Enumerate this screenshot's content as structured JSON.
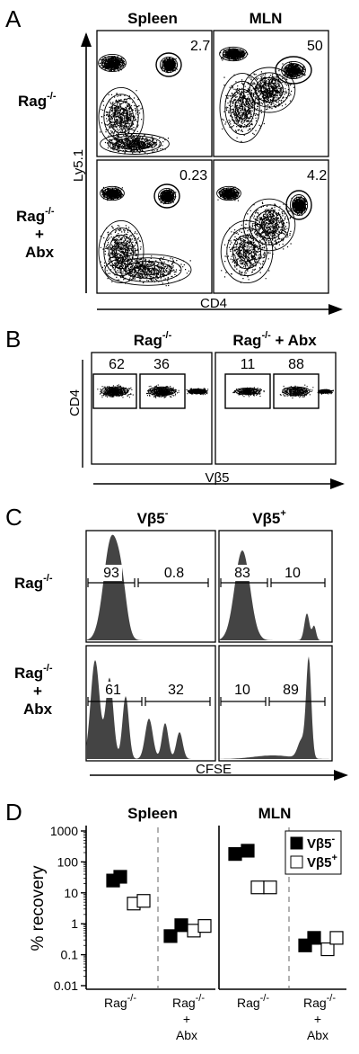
{
  "panelA": {
    "letter": "A",
    "col_headers": [
      "Spleen",
      "MLN"
    ],
    "rows": [
      {
        "label_main": "Rag",
        "label_sup": "-/-",
        "label_extra": ""
      },
      {
        "label_main": "Rag",
        "label_sup": "-/-",
        "label_extra": "Abx",
        "label_plus": "+"
      }
    ],
    "percents": [
      "2.7",
      "50",
      "0.23",
      "4.2"
    ],
    "y_axis": "Ly5.1",
    "x_axis": "CD4"
  },
  "panelB": {
    "letter": "B",
    "col_headers": [
      {
        "main": "Rag",
        "sup": "-/-",
        "rest": ""
      },
      {
        "main": "Rag",
        "sup": "-/-",
        "rest": " + Abx"
      }
    ],
    "percents": [
      "62",
      "36",
      "11",
      "88"
    ],
    "y_axis": "CD4",
    "x_axis": "Vβ5"
  },
  "panelC": {
    "letter": "C",
    "col_headers": [
      {
        "main": "Vβ5",
        "sup": "-"
      },
      {
        "main": "Vβ5",
        "sup": "+"
      }
    ],
    "rows": [
      {
        "label_main": "Rag",
        "label_sup": "-/-",
        "label_extra": ""
      },
      {
        "label_main": "Rag",
        "label_sup": "-/-",
        "label_extra": "Abx",
        "label_plus": "+"
      }
    ],
    "percents": [
      "93",
      "0.8",
      "83",
      "10",
      "61",
      "32",
      "10",
      "89"
    ],
    "x_axis": "CFSE"
  },
  "panelD": {
    "letter": "D",
    "col_headers": [
      "Spleen",
      "MLN"
    ],
    "y_axis": "% recovery",
    "y_ticks": [
      "1000",
      "100",
      "10",
      "1",
      "0.1",
      "0.01"
    ],
    "x_groups": [
      {
        "main": "Rag",
        "sup": "-/-",
        "plus": "",
        "extra": ""
      },
      {
        "main": "Rag",
        "sup": "-/-",
        "plus": "+",
        "extra": "Abx"
      }
    ],
    "legend": [
      {
        "main": "Vβ5",
        "sup": "-",
        "fill": "#000000"
      },
      {
        "main": "Vβ5",
        "sup": "+",
        "fill": "#ffffff"
      }
    ]
  },
  "chart_data": {
    "type": "scatter",
    "title": "",
    "ylabel": "% recovery",
    "y_scale": "log",
    "ylim": [
      0.01,
      1000
    ],
    "panels": [
      {
        "name": "Spleen",
        "categories": [
          "Rag-/-",
          "Rag-/- + Abx"
        ],
        "series": [
          {
            "name": "Vβ5-",
            "points": [
              {
                "group": 0,
                "values": [
                  25,
                  33
                ]
              },
              {
                "group": 1,
                "values": [
                  0.4,
                  0.9
                ]
              }
            ]
          },
          {
            "name": "Vβ5+",
            "points": [
              {
                "group": 0,
                "values": [
                  4.5,
                  5.5
                ]
              },
              {
                "group": 1,
                "values": [
                  0.6,
                  0.85
                ]
              }
            ]
          }
        ]
      },
      {
        "name": "MLN",
        "categories": [
          "Rag-/-",
          "Rag-/- + Abx"
        ],
        "series": [
          {
            "name": "Vβ5-",
            "points": [
              {
                "group": 0,
                "values": [
                  180,
                  230
                ]
              },
              {
                "group": 1,
                "values": [
                  0.2,
                  0.35
                ]
              }
            ]
          },
          {
            "name": "Vβ5+",
            "points": [
              {
                "group": 0,
                "values": [
                  15,
                  15
                ]
              },
              {
                "group": 1,
                "values": [
                  0.15,
                  0.35
                ]
              }
            ]
          }
        ]
      }
    ]
  }
}
